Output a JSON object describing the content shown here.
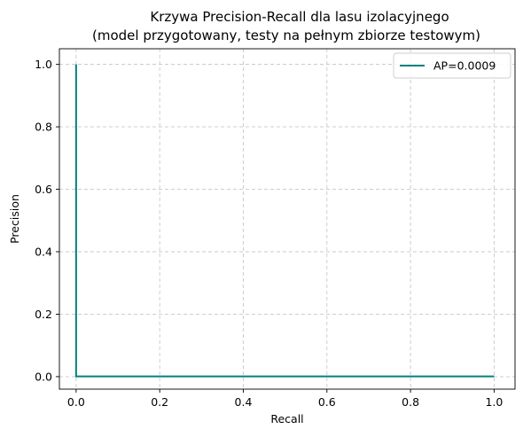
{
  "chart_data": {
    "type": "line",
    "title_lines": [
      "Krzywa Precision-Recall dla lasu izolacyjnego",
      "(model przygotowany, testy na pełnym zbiorze testowym)"
    ],
    "xlabel": "Recall",
    "ylabel": "Precision",
    "xlim": [
      -0.04,
      1.05
    ],
    "ylim": [
      -0.04,
      1.05
    ],
    "xticks": [
      0.0,
      0.2,
      0.4,
      0.6,
      0.8,
      1.0
    ],
    "yticks": [
      0.0,
      0.2,
      0.4,
      0.6,
      0.8,
      1.0
    ],
    "xtick_labels": [
      "0.0",
      "0.2",
      "0.4",
      "0.6",
      "0.8",
      "1.0"
    ],
    "ytick_labels": [
      "0.0",
      "0.2",
      "0.4",
      "0.6",
      "0.8",
      "1.0"
    ],
    "grid": true,
    "legend_position": "top-right",
    "series": [
      {
        "name": "AP=0.0009",
        "color": "#008080",
        "x": [
          1.0,
          0.0,
          0.0
        ],
        "y": [
          0.0009,
          0.0009,
          1.0
        ]
      }
    ]
  }
}
